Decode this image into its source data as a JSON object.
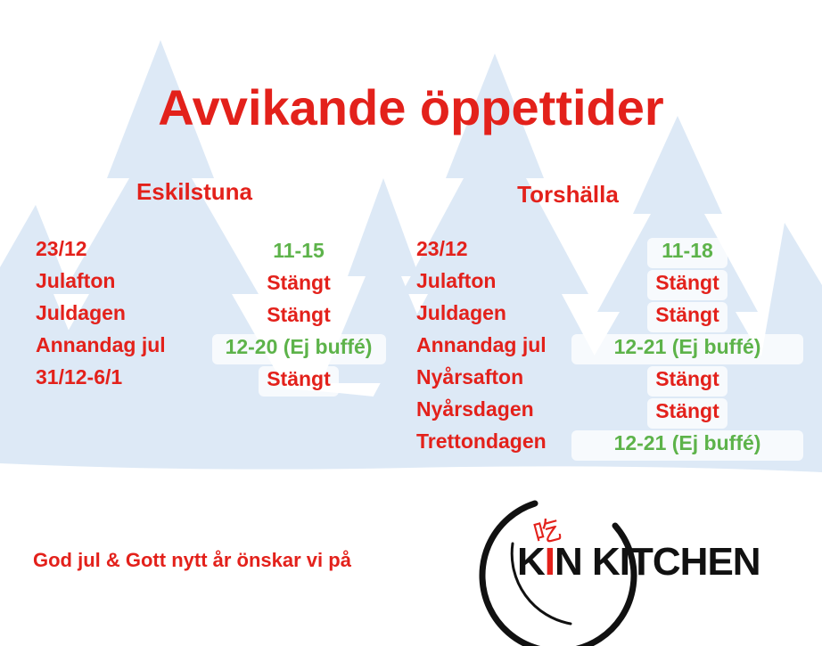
{
  "title": "Avvikande öppettider",
  "locations": [
    {
      "name": "Eskilstuna",
      "rows": [
        {
          "day": "23/12",
          "hours": "11-15",
          "color": "#5db34a"
        },
        {
          "day": "Julafton",
          "hours": "Stängt",
          "color": "#e3211b"
        },
        {
          "day": "Juldagen",
          "hours": "Stängt",
          "color": "#e3211b"
        },
        {
          "day": "Annandag jul",
          "hours": "12-20 (Ej buffé)",
          "color": "#5db34a"
        },
        {
          "day": "31/12-6/1",
          "hours": "Stängt",
          "color": "#e3211b"
        }
      ]
    },
    {
      "name": "Torshälla",
      "rows": [
        {
          "day": "23/12",
          "hours": "11-18",
          "color": "#5db34a"
        },
        {
          "day": "Julafton",
          "hours": "Stängt",
          "color": "#e3211b"
        },
        {
          "day": "Juldagen",
          "hours": "Stängt",
          "color": "#e3211b"
        },
        {
          "day": "Annandag jul",
          "hours": "12-21 (Ej buffé)",
          "color": "#5db34a"
        },
        {
          "day": "Nyårsafton",
          "hours": "Stängt",
          "color": "#e3211b"
        },
        {
          "day": "Nyårsdagen",
          "hours": "Stängt",
          "color": "#e3211b"
        },
        {
          "day": "Trettondagen",
          "hours": "12-21 (Ej buffé)",
          "color": "#5db34a"
        }
      ]
    }
  ],
  "footer": "God jul & Gott nytt år önskar vi på",
  "logo": {
    "icon": "吃",
    "prefix": "K",
    "accent": "I",
    "rest": "N KITCHEN"
  }
}
